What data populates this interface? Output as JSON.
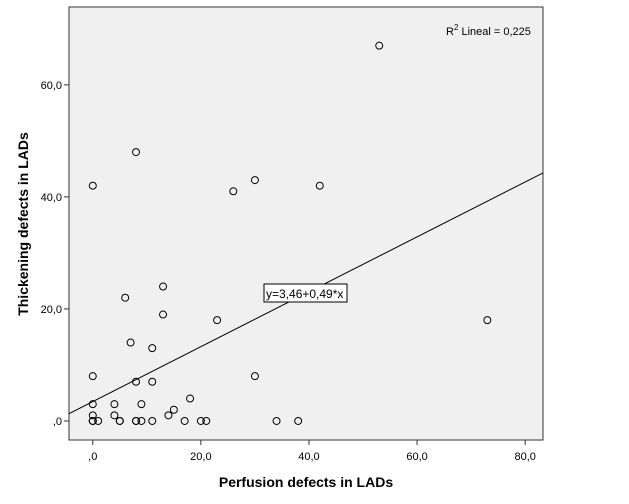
{
  "chart_data": {
    "type": "scatter",
    "xlabel": "Perfusion defects in LADs",
    "ylabel": "Thickening defects in LADs",
    "xlim": [
      -4.4,
      83.3
    ],
    "ylim": [
      -3.4,
      73.9
    ],
    "xticks": [
      0,
      20,
      40,
      60,
      80
    ],
    "xtick_labels": [
      ",0",
      "20,0",
      "40,0",
      "60,0",
      "80,0"
    ],
    "yticks": [
      0,
      20,
      40,
      60
    ],
    "ytick_labels": [
      ",0",
      "20,0",
      "40,0",
      "60,0"
    ],
    "grid": false,
    "background": "#f0f0f0",
    "points": [
      [
        0,
        0
      ],
      [
        0,
        0
      ],
      [
        0,
        0
      ],
      [
        1,
        0
      ],
      [
        0,
        1
      ],
      [
        0,
        3
      ],
      [
        0,
        8
      ],
      [
        0,
        42
      ],
      [
        8,
        48
      ],
      [
        26,
        41
      ],
      [
        30,
        43
      ],
      [
        42,
        42
      ],
      [
        53,
        67
      ],
      [
        6,
        22
      ],
      [
        13,
        24
      ],
      [
        13,
        19
      ],
      [
        7,
        14
      ],
      [
        11,
        13
      ],
      [
        23,
        18
      ],
      [
        73,
        18
      ],
      [
        8,
        7
      ],
      [
        11,
        7
      ],
      [
        30,
        8
      ],
      [
        4,
        3
      ],
      [
        9,
        3
      ],
      [
        4,
        1
      ],
      [
        18,
        4
      ],
      [
        15,
        2
      ],
      [
        14,
        1
      ],
      [
        5,
        0
      ],
      [
        5,
        0
      ],
      [
        8,
        0
      ],
      [
        8,
        0
      ],
      [
        9,
        0
      ],
      [
        11,
        0
      ],
      [
        17,
        0
      ],
      [
        20,
        0
      ],
      [
        21,
        0
      ],
      [
        34,
        0
      ],
      [
        38,
        0
      ]
    ],
    "fit_line": {
      "intercept": 3.46,
      "slope": 0.49,
      "label": "y=3,46+0,49*x"
    },
    "annotation": {
      "r2_prefix": "R",
      "r2_sup": "2",
      "r2_text": " Lineal = 0,225"
    }
  }
}
